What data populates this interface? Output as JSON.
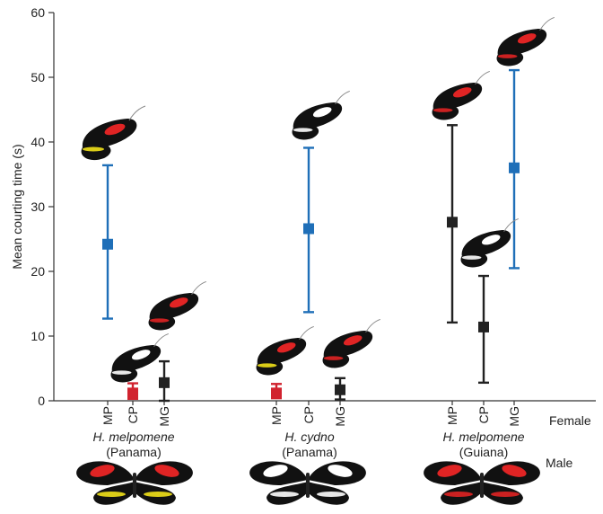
{
  "chart_data": {
    "type": "scatter",
    "ylabel": "Mean courting time (s)",
    "ylim": [
      0,
      60
    ],
    "yticks": [
      0,
      10,
      20,
      30,
      40,
      50,
      60
    ],
    "female_label": "Female",
    "male_label": "Male",
    "groups": [
      {
        "species": "H. melpomene",
        "location": "(Panama)",
        "wing_color": "#e02424",
        "band_color": "#f2e21a",
        "points": [
          {
            "category": "MP",
            "mean": 24.2,
            "low": 12.7,
            "high": 36.4,
            "color": "#1f6fb8"
          },
          {
            "category": "CP",
            "mean": 1.2,
            "low": 0.3,
            "high": 2.7,
            "color": "#d1232f"
          },
          {
            "category": "MG",
            "mean": 2.8,
            "low": 0.0,
            "high": 6.1,
            "color": "#222222"
          }
        ]
      },
      {
        "species": "H. cydno",
        "location": "(Panama)",
        "wing_color": "#ffffff",
        "band_color": "#ffffff",
        "points": [
          {
            "category": "MP",
            "mean": 1.2,
            "low": 0.4,
            "high": 2.6,
            "color": "#d1232f"
          },
          {
            "category": "CP",
            "mean": 26.6,
            "low": 13.7,
            "high": 39.1,
            "color": "#1f6fb8"
          },
          {
            "category": "MG",
            "mean": 1.7,
            "low": 0.2,
            "high": 3.5,
            "color": "#222222"
          }
        ]
      },
      {
        "species": "H. melpomene",
        "location": "(Guiana)",
        "wing_color": "#e02424",
        "band_color": "#e02424",
        "points": [
          {
            "category": "MP",
            "mean": 27.6,
            "low": 12.1,
            "high": 42.6,
            "color": "#222222"
          },
          {
            "category": "CP",
            "mean": 11.4,
            "low": 2.8,
            "high": 19.3,
            "color": "#222222"
          },
          {
            "category": "MG",
            "mean": 36.0,
            "low": 20.5,
            "high": 51.1,
            "color": "#1f6fb8"
          }
        ]
      }
    ]
  }
}
